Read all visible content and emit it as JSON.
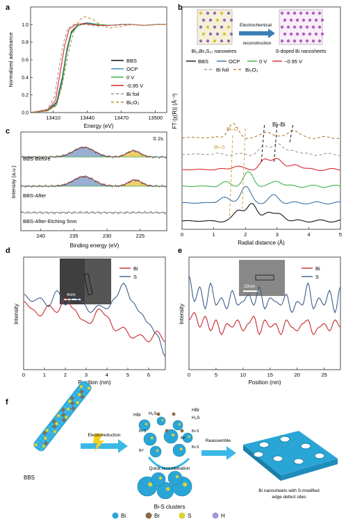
{
  "panel_letters": {
    "a": "a",
    "b": "b",
    "c": "c",
    "d": "d",
    "e": "e",
    "f": "f"
  },
  "chart_data": [
    {
      "id": "a",
      "type": "line",
      "xlabel": "Energy (eV)",
      "ylabel": "Normalized adsorbance",
      "xlim": [
        13390,
        13510
      ],
      "ylim": [
        0,
        1.2
      ],
      "xticks": [
        13410,
        13440,
        13470,
        13500
      ],
      "yticks": [
        0.0,
        0.2,
        0.4,
        0.6,
        0.8,
        1.0
      ],
      "legend_position": "right",
      "series": [
        {
          "name": "BBS",
          "color": "#111111",
          "dash": "",
          "x": [
            13390,
            13405,
            13413,
            13418,
            13422,
            13426,
            13432,
            13440,
            13450,
            13460,
            13470,
            13480,
            13490,
            13500,
            13510
          ],
          "y": [
            0.0,
            0.02,
            0.12,
            0.4,
            0.72,
            0.92,
            1.0,
            1.02,
            1.0,
            0.99,
            1.0,
            1.0,
            0.99,
            1.0,
            1.0
          ]
        },
        {
          "name": "OCP",
          "color": "#3a8db3",
          "dash": "",
          "x": [
            13390,
            13405,
            13413,
            13418,
            13422,
            13426,
            13432,
            13440,
            13450,
            13460,
            13470,
            13480,
            13490,
            13500,
            13510
          ],
          "y": [
            0.0,
            0.02,
            0.1,
            0.38,
            0.7,
            0.9,
            0.99,
            1.02,
            1.0,
            0.99,
            1.0,
            1.0,
            0.99,
            1.0,
            1.0
          ]
        },
        {
          "name": "0 V",
          "color": "#3cb24a",
          "dash": "",
          "x": [
            13390,
            13405,
            13413,
            13418,
            13422,
            13426,
            13432,
            13440,
            13450,
            13460,
            13470,
            13480,
            13490,
            13500,
            13510
          ],
          "y": [
            0.0,
            0.02,
            0.09,
            0.35,
            0.68,
            0.9,
            0.99,
            1.01,
            1.0,
            0.99,
            1.0,
            1.0,
            0.99,
            1.0,
            1.0
          ]
        },
        {
          "name": "-0.95 V",
          "color": "#d7262b",
          "dash": "",
          "x": [
            13390,
            13405,
            13412,
            13416,
            13420,
            13424,
            13430,
            13438,
            13450,
            13460,
            13470,
            13480,
            13490,
            13500,
            13510
          ],
          "y": [
            0.0,
            0.03,
            0.14,
            0.45,
            0.76,
            0.95,
            1.0,
            1.01,
            0.99,
            0.99,
            1.0,
            1.0,
            0.99,
            1.0,
            1.0
          ]
        },
        {
          "name": "Bi foil",
          "color": "#999999",
          "dash": "4,3",
          "x": [
            13390,
            13405,
            13411,
            13415,
            13419,
            13423,
            13428,
            13436,
            13450,
            13460,
            13470,
            13480,
            13490,
            13500,
            13510
          ],
          "y": [
            0.0,
            0.04,
            0.18,
            0.5,
            0.8,
            0.96,
            1.0,
            1.0,
            0.98,
            0.99,
            1.0,
            1.0,
            0.99,
            1.0,
            1.0
          ]
        },
        {
          "name": "Bi2O3",
          "color": "#c68a3a",
          "dash": "4,3",
          "x": [
            13390,
            13405,
            13413,
            13418,
            13423,
            13428,
            13433,
            13438,
            13445,
            13452,
            13460,
            13470,
            13480,
            13490,
            13500,
            13510
          ],
          "y": [
            0.0,
            0.02,
            0.08,
            0.32,
            0.66,
            0.92,
            1.05,
            1.09,
            1.06,
            0.99,
            0.96,
            0.98,
            1.0,
            0.99,
            1.0,
            1.0
          ]
        }
      ]
    },
    {
      "id": "b",
      "type": "line",
      "xlabel": "Radial distance (Å)",
      "ylabel": "FT-|χ(R)| (Å⁻³)",
      "xlim": [
        0,
        5
      ],
      "xticks": [
        0,
        1,
        2,
        3,
        4,
        5
      ],
      "annotations": [
        "Bi–Bi",
        "Bi–O",
        "Bi–S"
      ],
      "schematic": {
        "left_label": "Bi₁₉Br₃S₂₇ nanowires",
        "right_label": "S-doped Bi nanosheets",
        "arrow_label_1": "Electrochemical",
        "arrow_label_2": "reconstruction"
      },
      "series": [
        {
          "name": "BBS",
          "color": "#111111",
          "dash": "",
          "offset": 0,
          "peak_x": 2.2,
          "peaks": [
            [
              1.8,
              0.6
            ],
            [
              2.2,
              0.9
            ],
            [
              2.7,
              0.5
            ],
            [
              3.1,
              0.35
            ]
          ]
        },
        {
          "name": "OCP",
          "color": "#3a6fa3",
          "dash": "",
          "offset": 1,
          "peak_x": 2.0,
          "peaks": [
            [
              1.3,
              0.3
            ],
            [
              2.0,
              0.9
            ],
            [
              2.9,
              0.4
            ]
          ]
        },
        {
          "name": "0 V",
          "color": "#3cb24a",
          "dash": "",
          "offset": 2,
          "peak_x": 2.1,
          "peaks": [
            [
              1.4,
              0.2
            ],
            [
              2.1,
              0.75
            ],
            [
              3.0,
              0.3
            ]
          ]
        },
        {
          "name": "-0.95 V",
          "color": "#d7262b",
          "dash": "",
          "offset": 3,
          "peak_x": 3.0,
          "peaks": [
            [
              1.7,
              0.2
            ],
            [
              2.6,
              0.5
            ],
            [
              3.0,
              0.65
            ],
            [
              3.6,
              0.3
            ]
          ]
        },
        {
          "name": "Bi foil",
          "color": "#999999",
          "dash": "4,3",
          "offset": 4,
          "peak_x": 3.0,
          "peaks": [
            [
              2.6,
              0.4
            ],
            [
              3.0,
              0.6
            ],
            [
              3.5,
              0.25
            ]
          ]
        },
        {
          "name": "Bi2O3",
          "color": "#b9782f",
          "dash": "4,3",
          "offset": 5,
          "peak_x": 1.6,
          "peaks": [
            [
              1.6,
              0.75
            ],
            [
              2.7,
              0.35
            ],
            [
              3.5,
              0.45
            ]
          ]
        }
      ]
    },
    {
      "id": "c",
      "type": "line",
      "xlabel": "Binding energy (eV)",
      "ylabel": "Intensity (a.u.)",
      "corner_label": "S 2s",
      "xlim": [
        243,
        221
      ],
      "xticks": [
        240,
        235,
        230,
        225
      ],
      "spectra": [
        {
          "label": "BBS-Before",
          "peak": [
            233.5,
            226.0
          ]
        },
        {
          "label": "BBS-After",
          "peak": [
            233.5,
            225.8
          ]
        },
        {
          "label": "BBS-After-Etching 5nm",
          "peak": null
        }
      ]
    },
    {
      "id": "d",
      "type": "line",
      "xlabel": "Position (nm)",
      "ylabel": "Intensity",
      "xlim": [
        0,
        6.8
      ],
      "xticks": [
        0,
        1,
        2,
        3,
        4,
        5,
        6
      ],
      "scale_bar": "4nm",
      "series": [
        {
          "name": "Bi",
          "color": "#c62830",
          "x": [
            0,
            0.4,
            0.8,
            1.2,
            1.6,
            2.0,
            2.4,
            2.8,
            3.2,
            3.6,
            4.0,
            4.4,
            4.8,
            5.2,
            5.6,
            6.0,
            6.4,
            6.8
          ],
          "y": [
            0.55,
            0.45,
            0.35,
            0.5,
            0.4,
            0.6,
            0.45,
            0.3,
            0.25,
            0.45,
            0.35,
            0.15,
            0.2,
            0.05,
            0.1,
            0.0,
            0.15,
            0.0
          ]
        },
        {
          "name": "S",
          "color": "#3c5d8a",
          "x": [
            0,
            0.4,
            0.8,
            1.2,
            1.6,
            2.0,
            2.4,
            2.8,
            3.2,
            3.6,
            4.0,
            4.4,
            4.8,
            5.2,
            5.6,
            6.0,
            6.4,
            6.8
          ],
          "y": [
            0.65,
            0.55,
            0.6,
            0.48,
            0.7,
            0.5,
            0.6,
            0.55,
            0.4,
            0.5,
            0.45,
            0.6,
            0.8,
            0.55,
            0.4,
            0.25,
            0.1,
            -0.2
          ]
        }
      ]
    },
    {
      "id": "e",
      "type": "line",
      "xlabel": "Position (nm)",
      "ylabel": "Intensity",
      "xlim": [
        0,
        28
      ],
      "xticks": [
        0,
        5,
        10,
        15,
        20,
        25
      ],
      "scale_bar": "20nm",
      "series": [
        {
          "name": "Bi",
          "color": "#c62830",
          "x": [
            0,
            1,
            2,
            3,
            4,
            5,
            6,
            7,
            8,
            9,
            10,
            11,
            12,
            13,
            14,
            15,
            16,
            17,
            18,
            19,
            20,
            21,
            22,
            23,
            24,
            25,
            26,
            27,
            28
          ],
          "y": [
            0.3,
            0.4,
            0.2,
            0.35,
            0.15,
            0.3,
            0.1,
            0.25,
            0.2,
            0.3,
            0.15,
            0.25,
            0.35,
            0.1,
            0.3,
            0.2,
            0.25,
            0.1,
            0.3,
            0.2,
            0.15,
            0.25,
            0.3,
            0.1,
            0.2,
            0.25,
            0.15,
            0.3,
            0.2
          ]
        },
        {
          "name": "S",
          "color": "#3c5d8a",
          "x": [
            0,
            1,
            2,
            3,
            4,
            5,
            6,
            7,
            8,
            9,
            10,
            11,
            12,
            13,
            14,
            15,
            16,
            17,
            18,
            19,
            20,
            21,
            22,
            23,
            24,
            25,
            26,
            27,
            28
          ],
          "y": [
            0.9,
            0.55,
            0.75,
            0.45,
            0.8,
            0.5,
            0.6,
            0.45,
            0.7,
            0.5,
            0.55,
            0.65,
            0.5,
            0.75,
            0.45,
            0.6,
            0.55,
            0.5,
            0.65,
            0.4,
            0.55,
            0.5,
            0.8,
            0.45,
            0.6,
            0.5,
            0.7,
            0.4,
            0.75
          ]
        }
      ]
    }
  ],
  "panel_f": {
    "bbs_label": "BBS",
    "electroreduction": "Electroreduction",
    "quick_recombination": "Quick recombination",
    "clusters_label": "Bi-S clusters",
    "reassemble": "Reassemble",
    "nanosheet_label_1": "Bi nanosheets with S-modified",
    "nanosheet_label_2": "edge defect sites",
    "species": [
      "HBr",
      "H₂S",
      "HBr",
      "H₂S",
      "Bi-S",
      "Bi-S",
      "Bi-S",
      "Bi³",
      "Bi³"
    ],
    "legend": [
      {
        "label": "Bi",
        "color": "#2aa6d6"
      },
      {
        "label": "Br",
        "color": "#8a6a4a"
      },
      {
        "label": "S",
        "color": "#d9d23c"
      },
      {
        "label": "H",
        "color": "#9d9ad6"
      }
    ]
  }
}
